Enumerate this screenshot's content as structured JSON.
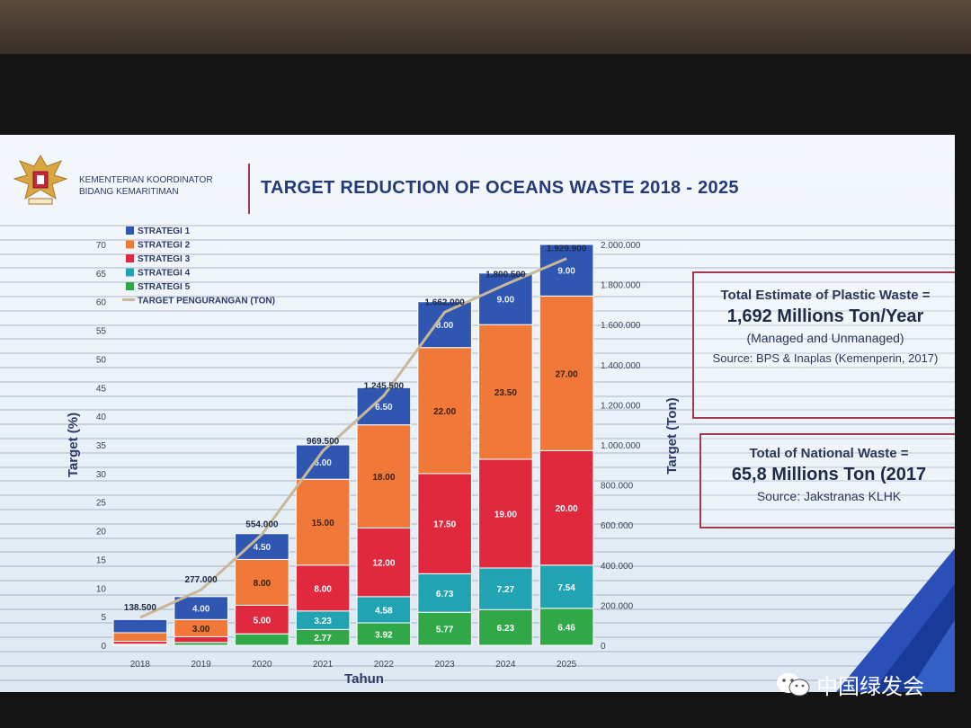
{
  "header": {
    "ministry_line1": "KEMENTERIAN KOORDINATOR",
    "ministry_line2": "BIDANG KEMARITIMAN",
    "title": "TARGET REDUCTION OF OCEANS WASTE 2018 - 2025"
  },
  "colors": {
    "strategi1": "#2f56b0",
    "strategi2": "#f07838",
    "strategi3": "#e0283e",
    "strategi4": "#22a3b3",
    "strategi5": "#30a848",
    "target_line": "#c8b898",
    "accent_border": "#a33a52"
  },
  "chart_data": {
    "type": "bar",
    "stacked": true,
    "title": "TARGET REDUCTION OF OCEANS WASTE 2018 - 2025",
    "xlabel": "Tahun",
    "ylabel": "Target (%)",
    "y2label": "Target (Ton)",
    "ylim": [
      0,
      70
    ],
    "y2lim": [
      0,
      2000000
    ],
    "yticks": [
      "0",
      "5",
      "10",
      "15",
      "20",
      "25",
      "30",
      "35",
      "40",
      "45",
      "50",
      "55",
      "60",
      "65",
      "70"
    ],
    "y2ticks": [
      "0",
      "200.000",
      "400.000",
      "600.000",
      "800.000",
      "1.000.000",
      "1.200.000",
      "1.400.000",
      "1.600.000",
      "1.800.000",
      "2.000.000"
    ],
    "categories": [
      "2018",
      "2019",
      "2020",
      "2021",
      "2022",
      "2023",
      "2024",
      "2025"
    ],
    "series": [
      {
        "name": "STRATEGI 5",
        "key": "strategi5",
        "values": [
          0.2,
          0.5,
          2.0,
          2.77,
          3.92,
          5.77,
          6.23,
          6.46
        ],
        "labels": [
          "",
          "",
          "",
          "2.77",
          "3.92",
          "5.77",
          "6.23",
          "6.46"
        ]
      },
      {
        "name": "STRATEGI 4",
        "key": "strategi4",
        "values": [
          0.0,
          0.0,
          0.0,
          3.23,
          4.58,
          6.73,
          7.27,
          7.54
        ],
        "labels": [
          "",
          "",
          "",
          "3.23",
          "4.58",
          "6.73",
          "7.27",
          "7.54"
        ]
      },
      {
        "name": "STRATEGI 3",
        "key": "strategi3",
        "values": [
          0.5,
          1.0,
          5.0,
          8.0,
          12.0,
          17.5,
          19.0,
          20.0
        ],
        "labels": [
          "",
          "",
          "5.00",
          "8.00",
          "12.00",
          "17.50",
          "19.00",
          "20.00"
        ]
      },
      {
        "name": "STRATEGI 2",
        "key": "strategi2",
        "values": [
          1.5,
          3.0,
          8.0,
          15.0,
          18.0,
          22.0,
          23.5,
          27.0
        ],
        "labels": [
          "",
          "3.00",
          "8.00",
          "15.00",
          "18.00",
          "22.00",
          "23.50",
          "27.00"
        ]
      },
      {
        "name": "STRATEGI 1",
        "key": "strategi1",
        "values": [
          2.3,
          4.0,
          4.5,
          6.0,
          6.5,
          8.0,
          9.0,
          9.0
        ],
        "labels": [
          "",
          "4.00",
          "4.50",
          "6.00",
          "6.50",
          "8.00",
          "9.00",
          "9.00"
        ]
      }
    ],
    "line": {
      "name": "TARGET PENGURANGAN (TON)",
      "values": [
        138500,
        277000,
        554000,
        969500,
        1245500,
        1662000,
        1800500,
        1929900
      ],
      "labels": [
        "138.500",
        "277.000",
        "554.000",
        "969.500",
        "1.245.500",
        "1.662.000",
        "1.800.500",
        "1.929.900"
      ]
    },
    "legend": {
      "position": "top-left",
      "entries": [
        "STRATEGI 1",
        "STRATEGI 2",
        "STRATEGI 3",
        "STRATEGI 4",
        "STRATEGI 5",
        "TARGET PENGURANGAN (TON)"
      ]
    }
  },
  "plastic_box": {
    "title": "Total Estimate of Plastic Waste =",
    "value": "1,692 Millions Ton/Year",
    "subtitle": "(Managed and Unmanaged)",
    "source": "Source: BPS & Inaplas (Kemenperin, 2017)"
  },
  "national_box": {
    "title": "Total of National Waste =",
    "value": "65,8 Millions Ton (2017",
    "source": "Source: Jakstranas KLHK"
  },
  "watermark": {
    "text": "中国绿发会"
  }
}
